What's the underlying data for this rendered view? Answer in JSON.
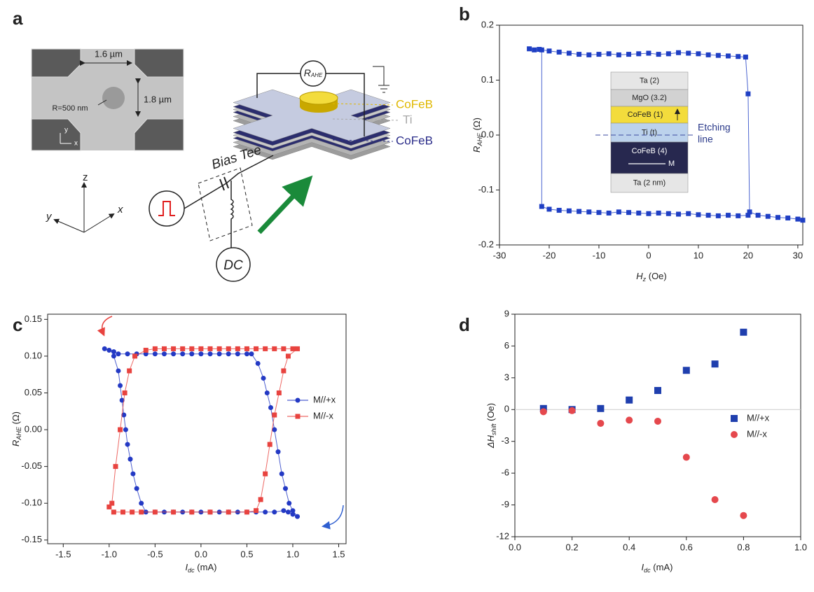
{
  "panel_labels": [
    "a",
    "b",
    "c",
    "d"
  ],
  "diagram": {
    "sem": {
      "width": "1.6 µm",
      "height": "1.8 µm",
      "radius": "R=500 nm",
      "y": "y",
      "x": "x"
    },
    "meter": {
      "main": "R",
      "sub": "AHE"
    },
    "layers": [
      "CoFeB",
      "Ti",
      "CoFeB"
    ],
    "bias_tee": "Bias Tee",
    "dc": "DC",
    "axes": {
      "z": "z",
      "y": "y",
      "x": "x"
    }
  },
  "chart_data": [
    {
      "type": "line",
      "xlabel": {
        "main": "H",
        "sub": "z",
        "rest": " (Oe)"
      },
      "ylabel": {
        "main": "R",
        "sub": "AHE",
        "rest": " (Ω)"
      },
      "xlim": [
        -30,
        31
      ],
      "xticks": [
        -30,
        -20,
        -10,
        0,
        10,
        20,
        30
      ],
      "ylim": [
        -0.2,
        0.2
      ],
      "yticks": [
        -0.2,
        -0.1,
        {
          "value": 0,
          "label": "0.0"
        },
        0.1,
        0.2
      ],
      "marker": "square",
      "series": [
        {
          "color": "#1f3fc4",
          "x": [
            -24,
            -23,
            -22,
            -20,
            -18,
            -16,
            -14,
            -12,
            -10,
            -8,
            -6,
            -4,
            -2,
            0,
            2,
            4,
            6,
            8,
            10,
            12,
            14,
            16,
            18,
            19.5,
            20,
            20.3,
            22,
            24,
            26,
            28,
            30,
            31
          ],
          "values": [
            0.157,
            0.155,
            0.156,
            0.153,
            0.151,
            0.149,
            0.147,
            0.146,
            0.147,
            0.148,
            0.146,
            0.147,
            0.148,
            0.149,
            0.147,
            0.148,
            0.15,
            0.149,
            0.148,
            0.146,
            0.145,
            0.144,
            0.143,
            0.142,
            0.075,
            -0.14,
            -0.146,
            -0.148,
            -0.15,
            -0.151,
            -0.153,
            -0.155
          ]
        },
        {
          "color": "#1f3fc4",
          "x": [
            -21.5,
            -21.5,
            -20,
            -18,
            -16,
            -14,
            -12,
            -10,
            -8,
            -6,
            -4,
            -2,
            0,
            2,
            4,
            6,
            8,
            10,
            12,
            14,
            16,
            18,
            20
          ],
          "values": [
            0.155,
            -0.13,
            -0.135,
            -0.137,
            -0.138,
            -0.139,
            -0.14,
            -0.141,
            -0.142,
            -0.14,
            -0.141,
            -0.142,
            -0.143,
            -0.142,
            -0.143,
            -0.144,
            -0.143,
            -0.145,
            -0.146,
            -0.147,
            -0.146,
            -0.147,
            -0.146
          ]
        }
      ],
      "inset": {
        "layers": [
          {
            "label": "Ta (2)",
            "color": "#e6e6e6",
            "text_color": "#222"
          },
          {
            "label": "MgO (3.2)",
            "color": "#d2d2d2",
            "text_color": "#222"
          },
          {
            "label": "CoFeB (1)",
            "color": "#f3dc3c",
            "text_color": "#222"
          },
          {
            "label": "Ti (t)",
            "color": "#bcd2ec",
            "text_color": "#222"
          },
          {
            "label": "CoFeB (4)",
            "color": "#27284f",
            "text_color": "#fff"
          },
          {
            "label": "Ta (2 nm)",
            "color": "#e6e6e6",
            "text_color": "#222"
          }
        ],
        "arrow_label": "M",
        "etching_label": [
          "Etching",
          "line"
        ]
      }
    },
    {
      "type": "line",
      "xlabel": {
        "main": "I",
        "sub": "dc",
        "rest": " (mA)"
      },
      "ylabel": {
        "main": "R",
        "sub": "AHE",
        "rest": " (Ω)"
      },
      "xlim": [
        -1.67,
        1.58
      ],
      "xticks": [
        -1.5,
        {
          "value": -1,
          "label": "-1.0"
        },
        -0.5,
        {
          "value": 0,
          "label": "0.0"
        },
        0.5,
        {
          "value": 1,
          "label": "1.0"
        },
        1.5
      ],
      "ylim": [
        -0.155,
        0.157
      ],
      "yticks": [
        0.15,
        {
          "value": 0.1,
          "label": "0.10"
        },
        0.05,
        {
          "value": 0,
          "label": "0.00"
        },
        -0.05,
        {
          "value": -0.1,
          "label": "-0.10"
        },
        -0.15
      ],
      "series": [
        {
          "name": "M//+x",
          "color": "#2339c4",
          "marker": "circle",
          "x": [
            -1.05,
            -1.0,
            -0.95,
            -0.9,
            -0.8,
            -0.7,
            -0.6,
            -0.5,
            -0.4,
            -0.3,
            -0.2,
            -0.1,
            0.0,
            0.1,
            0.2,
            0.3,
            0.4,
            0.5,
            0.55,
            0.62,
            0.68,
            0.72,
            0.76,
            0.8,
            0.84,
            0.88,
            0.92,
            0.96,
            1.0,
            1.05,
            1.0,
            0.95,
            0.9,
            0.8,
            0.7,
            0.6,
            0.5,
            0.4,
            0.3,
            0.2,
            0.1,
            0.0,
            -0.1,
            -0.2,
            -0.3,
            -0.4,
            -0.5,
            -0.6,
            -0.65,
            -0.7,
            -0.74,
            -0.77,
            -0.8,
            -0.82,
            -0.84,
            -0.86,
            -0.88,
            -0.9,
            -0.95
          ],
          "values": [
            0.11,
            0.108,
            0.106,
            0.103,
            0.103,
            0.103,
            0.103,
            0.103,
            0.103,
            0.103,
            0.103,
            0.103,
            0.103,
            0.103,
            0.103,
            0.103,
            0.103,
            0.103,
            0.103,
            0.09,
            0.07,
            0.05,
            0.03,
            0.0,
            -0.03,
            -0.06,
            -0.08,
            -0.1,
            -0.11,
            -0.118,
            -0.115,
            -0.112,
            -0.11,
            -0.112,
            -0.112,
            -0.112,
            -0.112,
            -0.112,
            -0.112,
            -0.112,
            -0.112,
            -0.112,
            -0.112,
            -0.112,
            -0.112,
            -0.112,
            -0.112,
            -0.112,
            -0.1,
            -0.08,
            -0.06,
            -0.04,
            -0.02,
            0.0,
            0.02,
            0.04,
            0.06,
            0.08,
            0.1
          ]
        },
        {
          "name": "M//-x",
          "color": "#e8433f",
          "marker": "square",
          "x": [
            -1.0,
            -0.97,
            -0.93,
            -0.88,
            -0.83,
            -0.78,
            -0.72,
            -0.6,
            -0.5,
            -0.4,
            -0.3,
            -0.2,
            -0.1,
            0.0,
            0.1,
            0.2,
            0.3,
            0.4,
            0.5,
            0.6,
            0.7,
            0.8,
            0.9,
            1.0,
            1.05,
            0.95,
            0.9,
            0.85,
            0.8,
            0.75,
            0.7,
            0.65,
            0.6,
            0.5,
            0.3,
            0.1,
            -0.1,
            -0.3,
            -0.5,
            -0.65,
            -0.75,
            -0.85,
            -0.95
          ],
          "values": [
            -0.105,
            -0.1,
            -0.05,
            0.0,
            0.05,
            0.08,
            0.1,
            0.108,
            0.11,
            0.11,
            0.11,
            0.11,
            0.11,
            0.11,
            0.11,
            0.11,
            0.11,
            0.11,
            0.11,
            0.11,
            0.11,
            0.11,
            0.11,
            0.11,
            0.11,
            0.1,
            0.08,
            0.05,
            0.02,
            -0.02,
            -0.06,
            -0.095,
            -0.11,
            -0.112,
            -0.112,
            -0.112,
            -0.112,
            -0.112,
            -0.112,
            -0.112,
            -0.112,
            -0.112,
            -0.112
          ]
        }
      ]
    },
    {
      "type": "scatter",
      "xlabel": {
        "main": "I",
        "sub": "dc",
        "rest": " (mA)"
      },
      "ylabel": {
        "main": "ΔH",
        "sub": "shift",
        "rest": " (Oe)"
      },
      "xlim": [
        0,
        1.0
      ],
      "xticks": [
        {
          "value": 0,
          "label": "0.0"
        },
        0.2,
        0.4,
        0.6,
        0.8,
        {
          "value": 1,
          "label": "1.0"
        }
      ],
      "ylim": [
        -12,
        9
      ],
      "yticks": [
        -12,
        -9,
        -6,
        -3,
        0,
        3,
        6,
        9
      ],
      "zero_line": true,
      "x": [
        0.1,
        0.2,
        0.3,
        0.4,
        0.5,
        0.6,
        0.7,
        0.8
      ],
      "series": [
        {
          "name": "M//+x",
          "color": "#1f3fae",
          "marker": "square",
          "values": [
            0.1,
            0.0,
            0.1,
            0.9,
            1.8,
            3.7,
            4.3,
            7.3
          ]
        },
        {
          "name": "M//-x",
          "color": "#e5484d",
          "marker": "circle",
          "values": [
            -0.2,
            -0.1,
            -1.3,
            -1.0,
            -1.1,
            -4.5,
            -8.5,
            -10.0
          ]
        }
      ]
    }
  ]
}
